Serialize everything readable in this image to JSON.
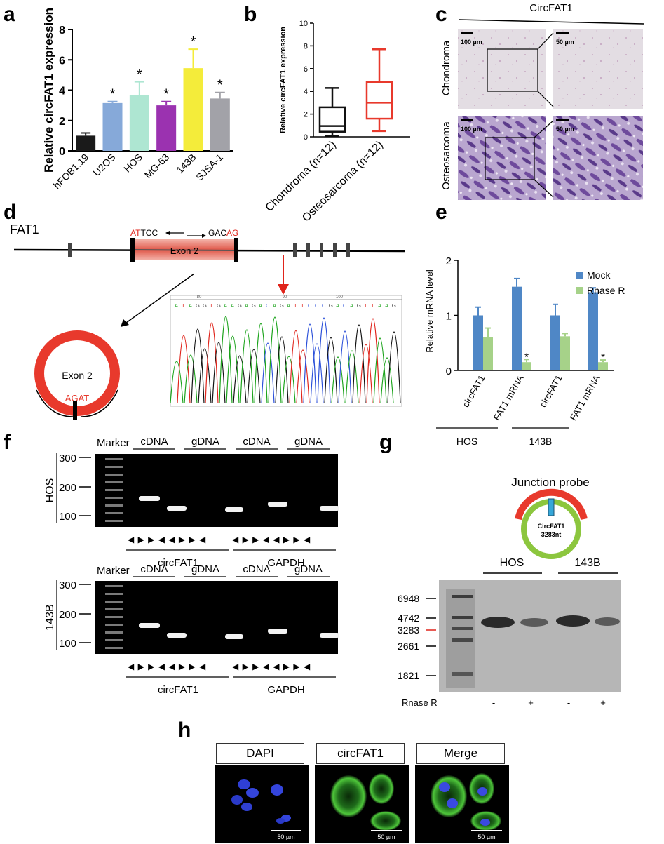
{
  "panel_labels": {
    "a": "a",
    "b": "b",
    "c": "c",
    "d": "d",
    "e": "e",
    "f": "f",
    "g": "g",
    "h": "h"
  },
  "chart_data": [
    {
      "id": "a",
      "type": "bar",
      "categories": [
        "hFOB1.19",
        "U2OS",
        "HOS",
        "MG-63",
        "143B",
        "SJSA-1"
      ],
      "values": [
        1.0,
        3.15,
        3.7,
        3.0,
        5.45,
        3.45
      ],
      "errors": [
        0.18,
        0.1,
        0.85,
        0.25,
        1.25,
        0.4
      ],
      "significant": [
        false,
        true,
        true,
        true,
        true,
        true
      ],
      "colors": [
        "#1a1a1a",
        "#86a9d9",
        "#aee6d2",
        "#9b32b0",
        "#f4ec3a",
        "#a2a2a8"
      ],
      "ylabel": "Relative circFAT1 expression",
      "xlabel": "",
      "ylim": [
        0,
        8
      ],
      "yticks": [
        0,
        2,
        4,
        6,
        8
      ],
      "star": "*"
    },
    {
      "id": "b",
      "type": "box",
      "categories": [
        "Chondroma (n=12)",
        "Osteosarcoma (n=12)"
      ],
      "boxes": [
        {
          "min": 0.1,
          "q1": 0.45,
          "median": 0.95,
          "q3": 2.6,
          "max": 4.3,
          "color": "#111111"
        },
        {
          "min": 0.5,
          "q1": 1.6,
          "median": 3.0,
          "q3": 4.8,
          "max": 7.7,
          "color": "#e8392c"
        }
      ],
      "ylabel": "Relative circFAT1 expression",
      "ylim": [
        0,
        10
      ],
      "yticks": [
        0,
        2,
        4,
        6,
        8,
        10
      ]
    },
    {
      "id": "e",
      "type": "bar",
      "categories": [
        "circFAT1",
        "FAT1 mRNA",
        "circFAT1",
        "FAT1 mRNA"
      ],
      "groups": [
        "HOS",
        "143B"
      ],
      "series": [
        {
          "name": "Mock",
          "color": "#4f87c6",
          "values": [
            1.0,
            1.52,
            1.0,
            1.42
          ],
          "errors": [
            0.15,
            0.15,
            0.2,
            0.08
          ]
        },
        {
          "name": "Rnase R",
          "color": "#a6d289",
          "values": [
            0.6,
            0.15,
            0.62,
            0.15
          ],
          "errors": [
            0.17,
            0.05,
            0.05,
            0.04
          ]
        }
      ],
      "significant_rnase": [
        false,
        true,
        false,
        true
      ],
      "ylabel": "Relative mRNA level",
      "ylim": [
        0,
        2
      ],
      "yticks": [
        0,
        1,
        2
      ],
      "star": "*"
    }
  ],
  "panel_c": {
    "title": "CircFAT1",
    "rows": [
      "Chondroma",
      "Osteosarcoma"
    ],
    "scale_left": "100 µm",
    "scale_right": "50 µm"
  },
  "panel_d": {
    "gene": "FAT1",
    "exon": "Exon 2",
    "primer_left_red": "AT",
    "primer_left_black": "TCC",
    "primer_right_black": "GAC",
    "primer_right_red": "AG",
    "circle_exon": "Exon 2",
    "junction": "AGAT",
    "seq_pos": [
      "80",
      "90",
      "100"
    ],
    "sequence": "ATAGGTGAAGAGACAGATTCCCGACAGTTAAG"
  },
  "panel_f": {
    "marker": "Marker",
    "lanes": [
      "cDNA",
      "gDNA",
      "cDNA",
      "gDNA"
    ],
    "rows": [
      {
        "cell": "HOS",
        "sizes": [
          "300",
          "200",
          "100"
        ]
      },
      {
        "cell": "143B",
        "sizes": [
          "300",
          "200",
          "100"
        ]
      }
    ],
    "primer_glyphs": "◀ ▶   ▶ ◀",
    "genes": [
      "circFAT1",
      "GAPDH"
    ]
  },
  "panel_g": {
    "probe_title": "Junction probe",
    "circle_label1": "CircFAT1",
    "circle_label2": "3283nt",
    "groups": [
      "HOS",
      "143B"
    ],
    "sizes": [
      "6948",
      "4742",
      "3283",
      "2661",
      "1821"
    ],
    "rnase_label": "Rnase R",
    "rnase": [
      "-",
      "+",
      "-",
      "+"
    ]
  },
  "panel_h": {
    "labels": [
      "DAPI",
      "circFAT1",
      "Merge"
    ],
    "scale": "50 µm"
  }
}
